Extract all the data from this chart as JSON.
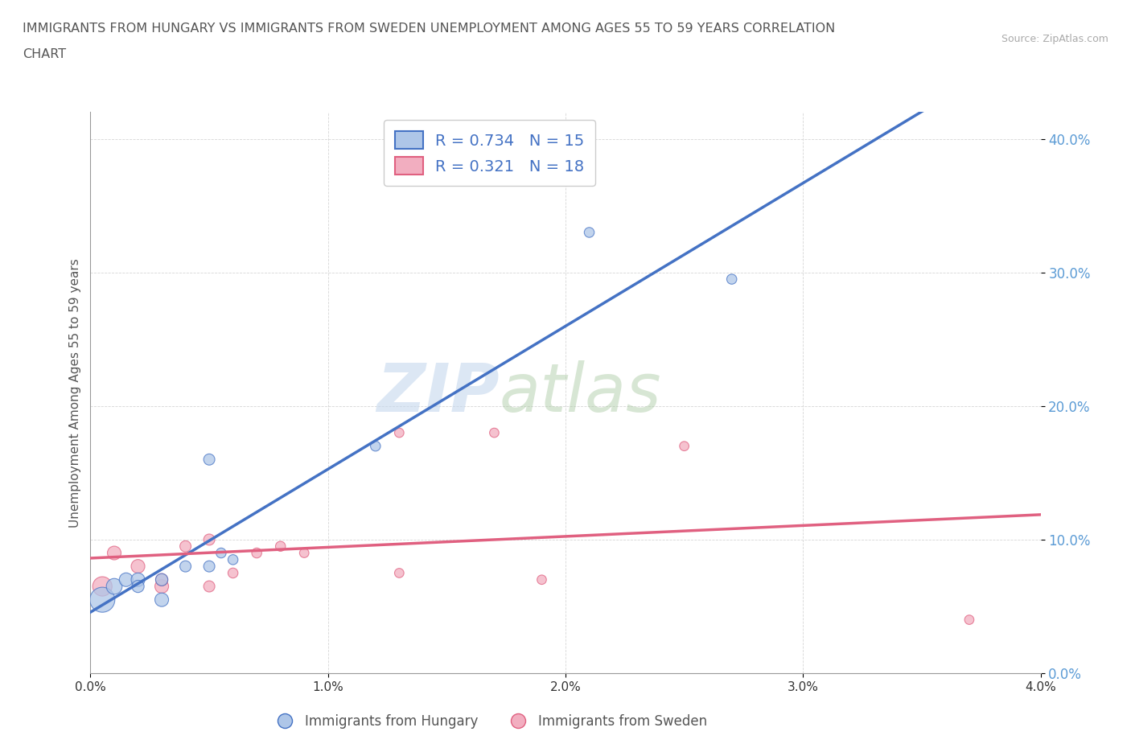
{
  "title_line1": "IMMIGRANTS FROM HUNGARY VS IMMIGRANTS FROM SWEDEN UNEMPLOYMENT AMONG AGES 55 TO 59 YEARS CORRELATION",
  "title_line2": "CHART",
  "source": "Source: ZipAtlas.com",
  "ylabel_label": "Unemployment Among Ages 55 to 59 years",
  "xlim": [
    0.0,
    0.04
  ],
  "ylim": [
    0.0,
    0.42
  ],
  "xticks": [
    0.0,
    0.01,
    0.02,
    0.03,
    0.04
  ],
  "yticks": [
    0.0,
    0.1,
    0.2,
    0.3,
    0.4
  ],
  "hungary_R": 0.734,
  "hungary_N": 15,
  "sweden_R": 0.321,
  "sweden_N": 18,
  "hungary_color": "#aec6e8",
  "sweden_color": "#f2aec0",
  "hungary_line_color": "#4472c4",
  "sweden_line_color": "#e06080",
  "tick_color": "#5b9bd5",
  "watermark_zip": "ZIP",
  "watermark_atlas": "atlas",
  "hungary_scatter_x": [
    0.0005,
    0.001,
    0.0015,
    0.002,
    0.002,
    0.003,
    0.003,
    0.004,
    0.005,
    0.005,
    0.0055,
    0.006,
    0.012,
    0.021,
    0.027
  ],
  "hungary_scatter_y": [
    0.055,
    0.065,
    0.07,
    0.07,
    0.065,
    0.055,
    0.07,
    0.08,
    0.08,
    0.16,
    0.09,
    0.085,
    0.17,
    0.33,
    0.295
  ],
  "sweden_scatter_x": [
    0.0005,
    0.001,
    0.002,
    0.003,
    0.003,
    0.004,
    0.005,
    0.005,
    0.006,
    0.007,
    0.008,
    0.009,
    0.013,
    0.013,
    0.017,
    0.019,
    0.025,
    0.037
  ],
  "sweden_scatter_y": [
    0.065,
    0.09,
    0.08,
    0.065,
    0.07,
    0.095,
    0.1,
    0.065,
    0.075,
    0.09,
    0.095,
    0.09,
    0.075,
    0.18,
    0.18,
    0.07,
    0.17,
    0.04
  ],
  "hungary_bubble_sizes": [
    500,
    200,
    150,
    150,
    120,
    150,
    120,
    100,
    100,
    100,
    80,
    80,
    80,
    80,
    80
  ],
  "sweden_bubble_sizes": [
    300,
    150,
    150,
    150,
    120,
    100,
    100,
    100,
    80,
    80,
    80,
    70,
    70,
    70,
    70,
    70,
    70,
    70
  ]
}
